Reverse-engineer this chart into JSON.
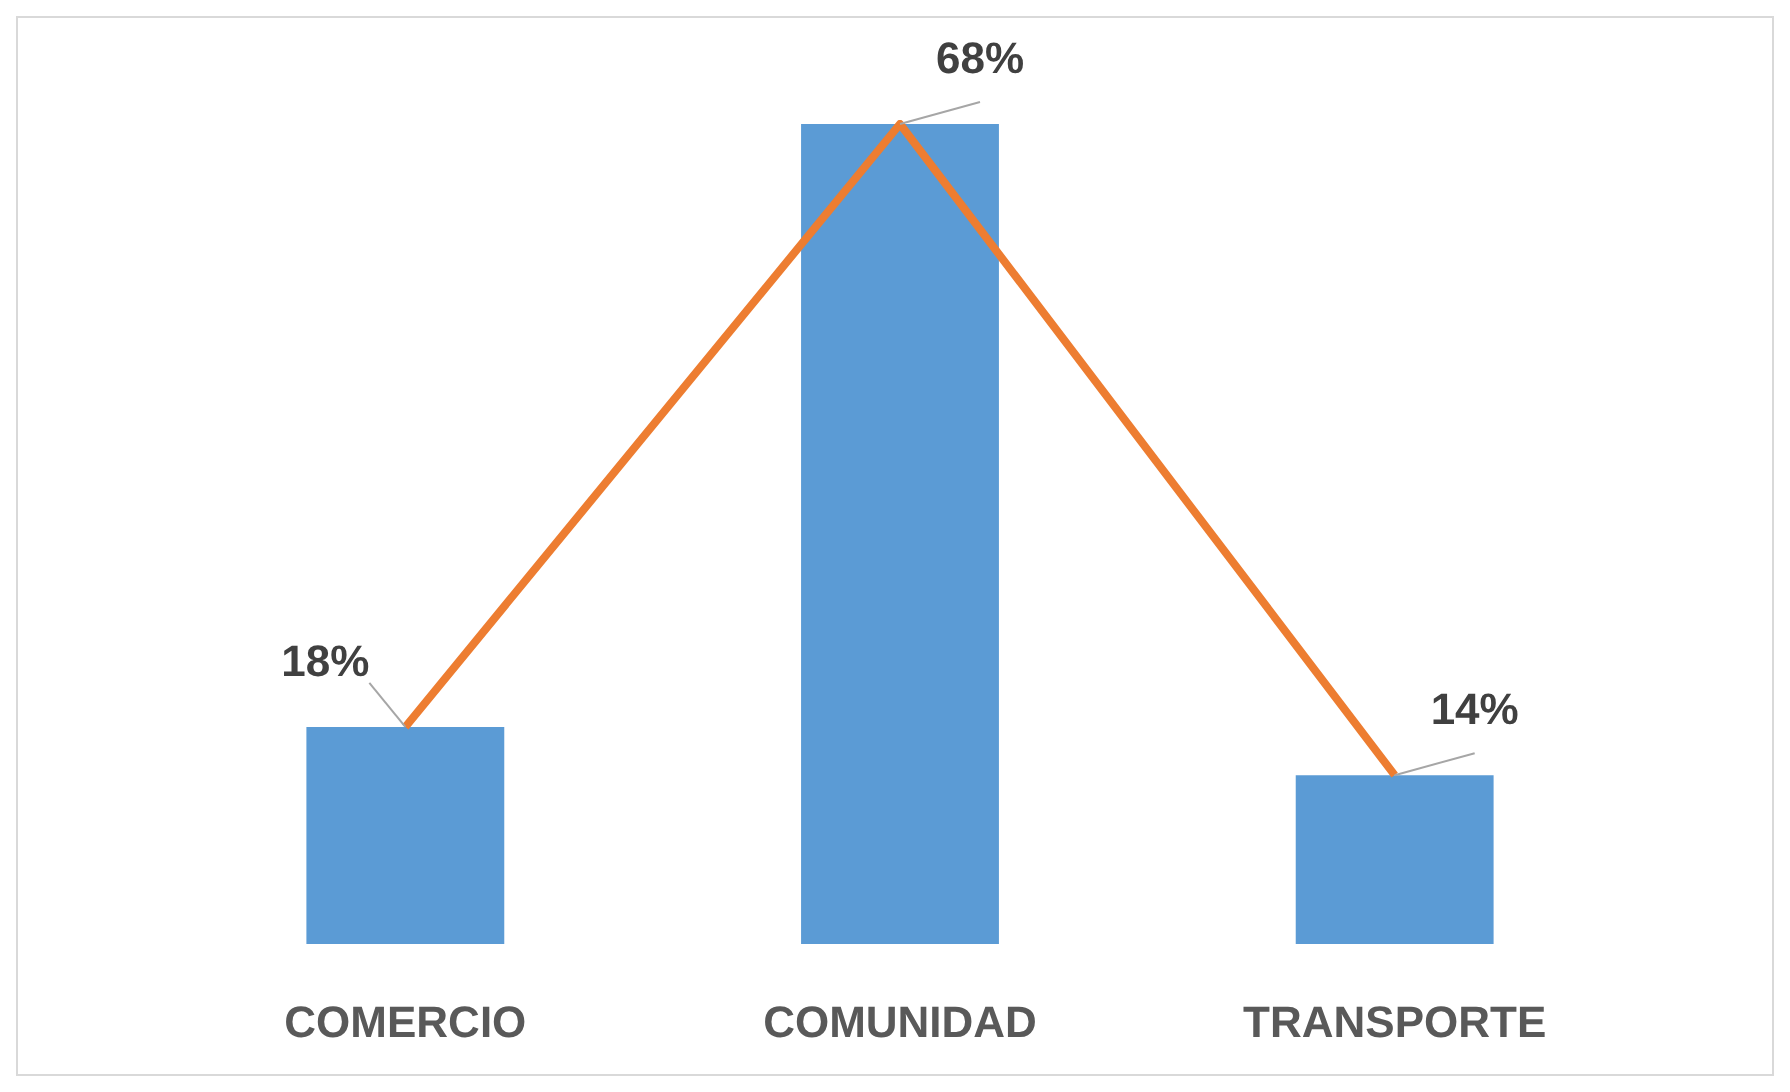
{
  "chart_data": {
    "type": "bar",
    "categories": [
      "COMERCIO",
      "COMUNIDAD",
      "TRANSPORTE"
    ],
    "series": [
      {
        "color": "#5b9bd5",
        "values": [
          18,
          68,
          14
        ]
      },
      {
        "type": "line",
        "color": "#ed7d31",
        "values": [
          18,
          68,
          14
        ],
        "value_labels": [
          "18%",
          "68%",
          "14%"
        ]
      }
    ],
    "marker": "none"
  }
}
